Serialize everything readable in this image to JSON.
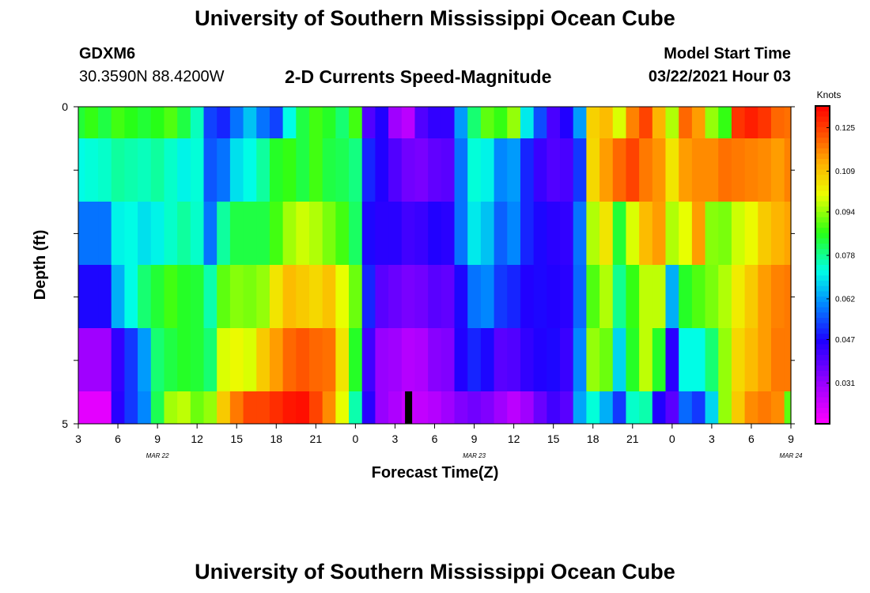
{
  "header": {
    "title": "University of Southern Mississippi Ocean Cube",
    "station_id": "GDXM6",
    "coordinates": "30.3590N 88.4200W",
    "model_start_label": "Model Start Time",
    "model_start_value": "03/22/2021 Hour 03"
  },
  "footer": {
    "title": "University of Southern Mississippi Ocean Cube"
  },
  "chart_data": {
    "type": "heatmap",
    "title": "2-D Currents Speed-Magnitude",
    "xlabel": "Forecast Time(Z)",
    "ylabel": "Depth (ft)",
    "ylim": [
      0,
      5
    ],
    "y_tick_labels": [
      "0",
      "5"
    ],
    "x_tick_labels": [
      "3",
      "6",
      "9",
      "12",
      "15",
      "18",
      "21",
      "0",
      "3",
      "6",
      "9",
      "12",
      "15",
      "18",
      "21",
      "0",
      "3",
      "6",
      "9"
    ],
    "date_labels": [
      "MAR 22",
      "MAR 23",
      "MAR 24"
    ],
    "date_label_hours": [
      6,
      30,
      54
    ],
    "hours_from": "03/22/2021 Hour 03",
    "hours_range": [
      0,
      54
    ],
    "current_time_marker_hour": 25,
    "colorbar": {
      "label": "Knots",
      "tick_labels": [
        "0.031",
        "0.047",
        "0.062",
        "0.078",
        "0.094",
        "0.109",
        "0.125"
      ],
      "range": [
        0.016,
        0.133
      ]
    },
    "heatmap": {
      "rows_depth_top_to_bottom": 6,
      "columns": 55,
      "column_hours": [
        0,
        1,
        2,
        3,
        4,
        5,
        6,
        7,
        8,
        9,
        10,
        11,
        12,
        13,
        14,
        15,
        16,
        17,
        18,
        19,
        20,
        21,
        22,
        23,
        24,
        25,
        26,
        27,
        28,
        29,
        30,
        31,
        32,
        33,
        34,
        35,
        36,
        37,
        38,
        39,
        40,
        41,
        42,
        43,
        44,
        45,
        46,
        47,
        48,
        49,
        50,
        51,
        52,
        53,
        54
      ],
      "values": [
        [
          0.084,
          0.087,
          0.083,
          0.088,
          0.086,
          0.084,
          0.086,
          0.089,
          0.083,
          0.075,
          0.053,
          0.05,
          0.058,
          0.066,
          0.058,
          0.053,
          0.072,
          0.083,
          0.088,
          0.085,
          0.08,
          0.088,
          0.04,
          0.046,
          0.03,
          0.026,
          0.04,
          0.044,
          0.044,
          0.062,
          0.08,
          0.09,
          0.087,
          0.094,
          0.07,
          0.054,
          0.041,
          0.046,
          0.062,
          0.107,
          0.11,
          0.099,
          0.117,
          0.124,
          0.111,
          0.096,
          0.12,
          0.114,
          0.094,
          0.087,
          0.126,
          0.129,
          0.126,
          0.12,
          0.119
        ],
        [
          0.072,
          0.073,
          0.074,
          0.077,
          0.076,
          0.075,
          0.077,
          0.074,
          0.071,
          0.073,
          0.055,
          0.058,
          0.069,
          0.072,
          0.077,
          0.085,
          0.087,
          0.083,
          0.088,
          0.083,
          0.082,
          0.079,
          0.05,
          0.046,
          0.04,
          0.036,
          0.035,
          0.038,
          0.039,
          0.058,
          0.073,
          0.071,
          0.06,
          0.062,
          0.05,
          0.043,
          0.04,
          0.041,
          0.052,
          0.106,
          0.114,
          0.12,
          0.124,
          0.118,
          0.115,
          0.104,
          0.114,
          0.116,
          0.116,
          0.119,
          0.118,
          0.117,
          0.116,
          0.114,
          0.117
        ],
        [
          0.058,
          0.058,
          0.058,
          0.071,
          0.072,
          0.069,
          0.071,
          0.074,
          0.077,
          0.074,
          0.058,
          0.077,
          0.083,
          0.083,
          0.083,
          0.088,
          0.095,
          0.098,
          0.096,
          0.092,
          0.088,
          0.081,
          0.047,
          0.045,
          0.045,
          0.042,
          0.043,
          0.046,
          0.045,
          0.058,
          0.07,
          0.066,
          0.056,
          0.06,
          0.05,
          0.047,
          0.045,
          0.044,
          0.058,
          0.096,
          0.104,
          0.084,
          0.099,
          0.11,
          0.114,
          0.096,
          0.1,
          0.114,
          0.093,
          0.092,
          0.098,
          0.101,
          0.108,
          0.111,
          0.113
        ],
        [
          0.047,
          0.047,
          0.047,
          0.064,
          0.072,
          0.08,
          0.084,
          0.088,
          0.085,
          0.084,
          0.076,
          0.09,
          0.093,
          0.092,
          0.094,
          0.104,
          0.11,
          0.108,
          0.106,
          0.109,
          0.1,
          0.091,
          0.05,
          0.039,
          0.037,
          0.035,
          0.036,
          0.039,
          0.038,
          0.047,
          0.058,
          0.06,
          0.052,
          0.05,
          0.046,
          0.047,
          0.046,
          0.045,
          0.057,
          0.089,
          0.096,
          0.078,
          0.087,
          0.097,
          0.097,
          0.064,
          0.085,
          0.089,
          0.092,
          0.096,
          0.103,
          0.108,
          0.114,
          0.117,
          0.118
        ],
        [
          0.03,
          0.03,
          0.03,
          0.044,
          0.052,
          0.062,
          0.08,
          0.083,
          0.085,
          0.084,
          0.08,
          0.099,
          0.101,
          0.099,
          0.108,
          0.114,
          0.12,
          0.122,
          0.12,
          0.119,
          0.104,
          0.085,
          0.042,
          0.031,
          0.03,
          0.027,
          0.028,
          0.033,
          0.034,
          0.046,
          0.05,
          0.047,
          0.039,
          0.04,
          0.044,
          0.046,
          0.047,
          0.043,
          0.06,
          0.094,
          0.091,
          0.068,
          0.085,
          0.097,
          0.085,
          0.045,
          0.072,
          0.072,
          0.08,
          0.094,
          0.106,
          0.11,
          0.114,
          0.118,
          0.118
        ],
        [
          0.02,
          0.02,
          0.02,
          0.045,
          0.052,
          0.06,
          0.082,
          0.095,
          0.097,
          0.091,
          0.094,
          0.108,
          0.118,
          0.124,
          0.124,
          0.127,
          0.13,
          0.131,
          0.124,
          0.116,
          0.1,
          0.076,
          0.045,
          0.031,
          0.028,
          0.024,
          0.025,
          0.027,
          0.03,
          0.034,
          0.036,
          0.034,
          0.03,
          0.026,
          0.03,
          0.037,
          0.042,
          0.039,
          0.063,
          0.073,
          0.064,
          0.052,
          0.074,
          0.076,
          0.046,
          0.039,
          0.057,
          0.052,
          0.068,
          0.094,
          0.108,
          0.116,
          0.118,
          0.116,
          0.09
        ]
      ]
    }
  }
}
